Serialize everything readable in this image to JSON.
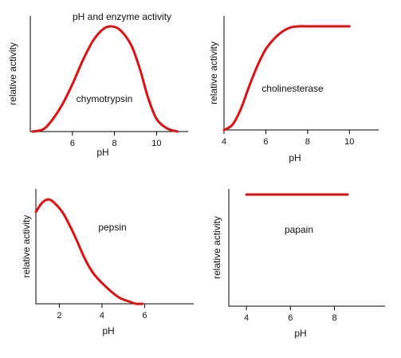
{
  "title": "pH and enzyme activity",
  "colors": {
    "curve": "#dd1111",
    "axis": "#000000",
    "marker": "#3355cc"
  },
  "chart_data": [
    {
      "type": "line",
      "annotation": "chymotrypsin",
      "xlabel": "pH",
      "ylabel": "relative activity",
      "xlim": [
        4,
        11.5
      ],
      "ylim": [
        0,
        1.1
      ],
      "xticks": [
        6,
        8,
        10
      ],
      "series": [
        {
          "x": [
            4.1,
            4.6,
            5.0,
            5.5,
            6.0,
            6.5,
            7.0,
            7.5,
            7.9,
            8.3,
            8.8,
            9.2,
            9.6,
            10.0,
            10.5,
            11.0
          ],
          "y": [
            0.0,
            0.02,
            0.1,
            0.25,
            0.45,
            0.68,
            0.87,
            0.98,
            1.0,
            0.96,
            0.82,
            0.6,
            0.32,
            0.12,
            0.03,
            0.0
          ]
        }
      ]
    },
    {
      "type": "line",
      "annotation": "cholinesterase",
      "xlabel": "pH",
      "ylabel": "relative activity",
      "xlim": [
        4,
        11.4
      ],
      "ylim": [
        0,
        1.1
      ],
      "xticks": [
        4,
        6,
        8,
        10
      ],
      "series": [
        {
          "x": [
            4.0,
            4.4,
            4.8,
            5.2,
            5.6,
            6.0,
            6.4,
            6.8,
            7.2,
            7.6,
            8.0,
            9.0,
            10.0
          ],
          "y": [
            0.0,
            0.05,
            0.2,
            0.42,
            0.62,
            0.78,
            0.88,
            0.95,
            0.99,
            1.0,
            1.0,
            1.0,
            1.0
          ]
        }
      ]
    },
    {
      "type": "line",
      "annotation": "pepsin",
      "xlabel": "pH",
      "ylabel": "relative activity",
      "xlim": [
        0.9,
        8.3
      ],
      "ylim": [
        0,
        1.1
      ],
      "xticks": [
        2,
        4,
        6
      ],
      "series": [
        {
          "x": [
            0.9,
            1.2,
            1.5,
            1.8,
            2.2,
            2.7,
            3.2,
            3.6,
            4.2,
            4.8,
            5.3,
            5.6,
            5.9
          ],
          "y": [
            0.88,
            0.97,
            1.0,
            0.96,
            0.86,
            0.66,
            0.43,
            0.29,
            0.16,
            0.06,
            0.02,
            0.0,
            0.0
          ]
        }
      ]
    },
    {
      "type": "line",
      "annotation": "papain",
      "xlabel": "pH",
      "ylabel": "relative activity",
      "xlim": [
        3.2,
        10.3
      ],
      "ylim": [
        0,
        1.05
      ],
      "xticks": [
        4,
        6,
        8
      ],
      "series": [
        {
          "x": [
            4.0,
            8.6
          ],
          "y": [
            1.0,
            1.0
          ]
        }
      ]
    }
  ]
}
